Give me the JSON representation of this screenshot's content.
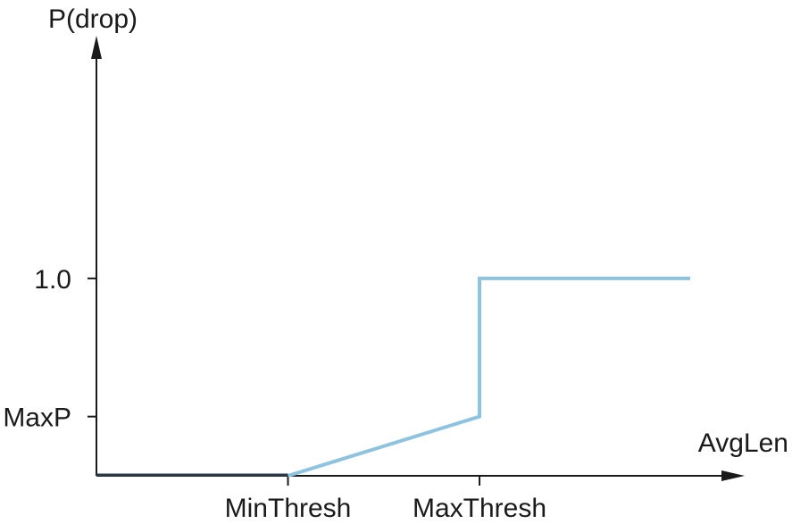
{
  "chart_data": {
    "type": "line",
    "title": "",
    "xlabel": "AvgLen",
    "ylabel": "P(drop)",
    "x_ticks": [
      {
        "label": "MinThresh",
        "value": 1
      },
      {
        "label": "MaxThresh",
        "value": 2
      }
    ],
    "y_ticks": [
      {
        "label": "MaxP",
        "value": 0.3
      },
      {
        "label": "1.0",
        "value": 1.0
      }
    ],
    "xlim": [
      0,
      3.1
    ],
    "ylim": [
      0,
      1.8
    ],
    "grid": false,
    "series": [
      {
        "points": [
          {
            "x": 0,
            "y": 0
          },
          {
            "x": 1,
            "y": 0
          },
          {
            "x": 2,
            "y": 0.3
          },
          {
            "x": 2,
            "y": 1.0
          },
          {
            "x": 3.1,
            "y": 1.0
          }
        ]
      }
    ],
    "colors": {
      "curve": "#8ec3e0",
      "axis": "#1a1a1a",
      "baseline": "#2b3a44"
    }
  }
}
